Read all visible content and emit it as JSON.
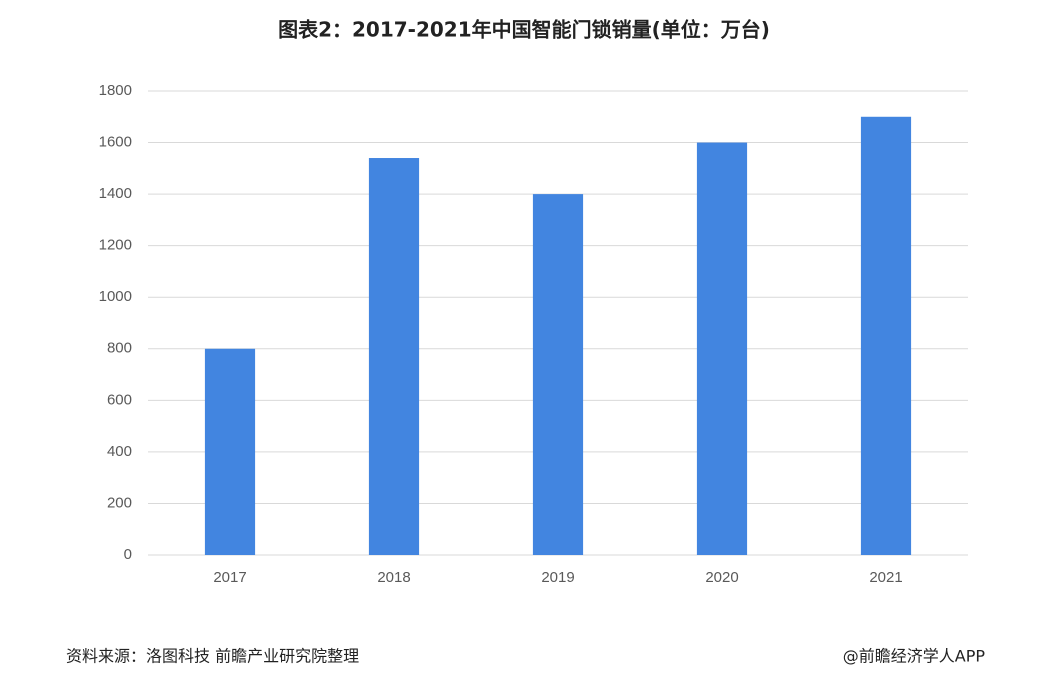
{
  "chart_data": {
    "type": "bar",
    "title": "图表2：2017-2021年中国智能门锁销量(单位：万台)",
    "categories": [
      "2017",
      "2018",
      "2019",
      "2020",
      "2021"
    ],
    "values": [
      800,
      1540,
      1400,
      1600,
      1700
    ],
    "color": "#4285e0",
    "ylim": [
      0,
      1800
    ],
    "yticks": [
      0,
      200,
      400,
      600,
      800,
      1000,
      1200,
      1400,
      1600,
      1800
    ],
    "grid": true,
    "source": "资料来源：洛图科技 前瞻产业研究院整理",
    "credit": "@前瞻经济学人APP"
  }
}
